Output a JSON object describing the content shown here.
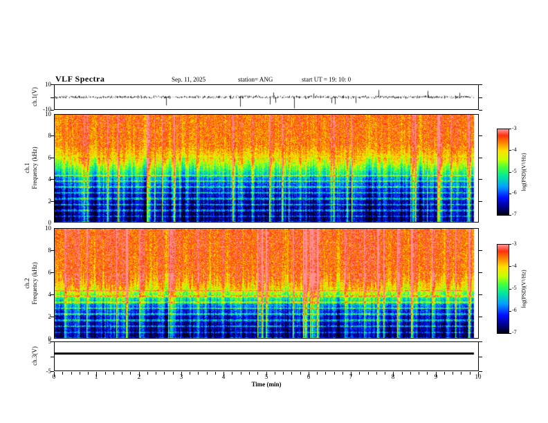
{
  "chart_data": {
    "type": "heatmap",
    "title": "VLF Spectra",
    "header": {
      "date": "Sep. 11, 2025",
      "station": "station= ANG",
      "start_ut": "start UT  =   19: 10: 0"
    },
    "x": {
      "label": "Time (min)",
      "range": [
        0,
        10
      ],
      "ticks": [
        0,
        1,
        2,
        3,
        4,
        5,
        6,
        7,
        8,
        9,
        10
      ],
      "data_end_min": 9.9
    },
    "panels": [
      {
        "id": "ch1_voltage",
        "type": "line",
        "ylabel": "ch.1(V)",
        "yrange": [
          -10,
          10
        ],
        "yticks": [
          10,
          -10
        ],
        "description": "broadband noise waveform near 0 V with sporadic impulsive spikes"
      },
      {
        "id": "ch1_spectrogram",
        "type": "heatmap",
        "ylabel_line1": "ch.1",
        "ylabel_line2": "Frequency (kHz)",
        "yrange": [
          0,
          10
        ],
        "yticks": [
          10,
          8,
          6,
          4,
          2,
          0
        ],
        "profile_psd_vs_kHz": [
          [
            0,
            -6.95
          ],
          [
            0.8,
            -6.85
          ],
          [
            1.6,
            -6.75
          ],
          [
            2.4,
            -6.55
          ],
          [
            3.2,
            -6.35
          ],
          [
            4.0,
            -5.9
          ],
          [
            4.8,
            -5.2
          ],
          [
            5.6,
            -4.5
          ],
          [
            6.4,
            -4.0
          ],
          [
            7.2,
            -3.7
          ],
          [
            10,
            -3.6
          ]
        ]
      },
      {
        "id": "ch2_spectrogram",
        "type": "heatmap",
        "ylabel_line1": "ch.2",
        "ylabel_line2": "Frequency (kHz)",
        "yrange": [
          0,
          10
        ],
        "yticks": [
          10,
          8,
          6,
          4,
          2,
          0
        ],
        "profile_psd_vs_kHz": [
          [
            0,
            -6.9
          ],
          [
            1.0,
            -6.7
          ],
          [
            2.0,
            -6.5
          ],
          [
            2.8,
            -6.1
          ],
          [
            3.4,
            -5.5
          ],
          [
            4.0,
            -4.8
          ],
          [
            4.6,
            -4.2
          ],
          [
            5.4,
            -3.8
          ],
          [
            6.2,
            -3.6
          ],
          [
            10,
            -3.5
          ]
        ]
      },
      {
        "id": "ch3_voltage",
        "type": "line",
        "ylabel": "ch.3(V)",
        "yrange": [
          -5,
          5
        ],
        "yticks": [
          5,
          -5
        ],
        "constant_value": 1.0
      }
    ],
    "colorbar": {
      "label": "log(PSD)(V²/Hz)",
      "range": [
        -7,
        -3
      ],
      "ticks": [
        -3,
        -4,
        -5,
        -6,
        -7
      ],
      "stops": [
        [
          0,
          "#000010"
        ],
        [
          0.08,
          "#000080"
        ],
        [
          0.2,
          "#0010ff"
        ],
        [
          0.33,
          "#00a0ff"
        ],
        [
          0.45,
          "#00e8a0"
        ],
        [
          0.55,
          "#40ff40"
        ],
        [
          0.65,
          "#c8ff00"
        ],
        [
          0.75,
          "#ffe000"
        ],
        [
          0.85,
          "#ff8000"
        ],
        [
          0.93,
          "#ff3010"
        ],
        [
          1,
          "#ff9090"
        ]
      ]
    }
  }
}
